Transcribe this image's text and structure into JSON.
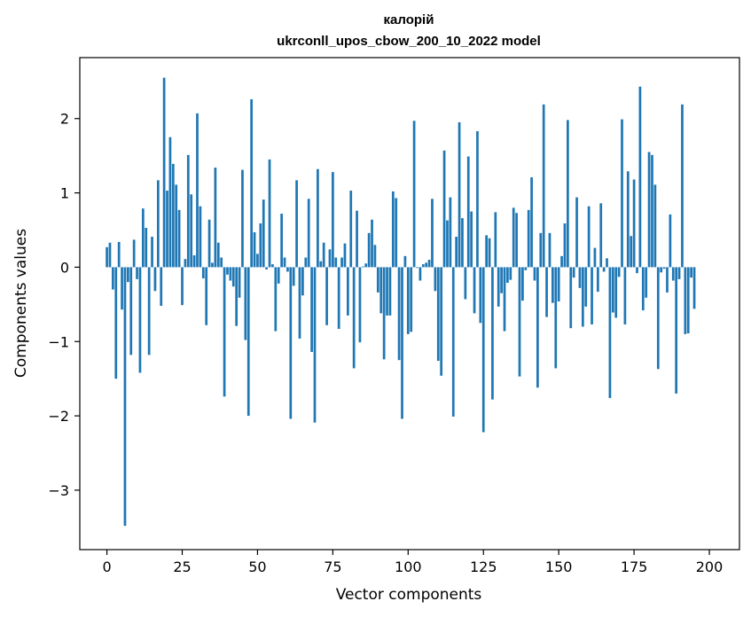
{
  "chart_data": {
    "type": "bar",
    "title_line1": "калорій",
    "title_line2": "ukrconll_upos_cbow_200_10_2022 model",
    "xlabel": "Vector components",
    "ylabel": "Components values",
    "xlim": [
      -9,
      210
    ],
    "ylim": [
      -3.8,
      2.82
    ],
    "xticks": [
      0,
      25,
      50,
      75,
      100,
      125,
      150,
      175,
      200
    ],
    "xtick_labels": [
      "0",
      "25",
      "50",
      "75",
      "100",
      "125",
      "150",
      "175",
      "200"
    ],
    "yticks": [
      -3,
      -2,
      -1,
      0,
      1,
      2
    ],
    "ytick_labels": [
      "−3",
      "−2",
      "−1",
      "0",
      "1",
      "2"
    ],
    "bar_color": "#1f77b4",
    "grid": false,
    "values": [
      0.27,
      0.33,
      -0.3,
      -1.5,
      0.34,
      -0.57,
      -3.48,
      -0.2,
      -1.18,
      0.37,
      -0.16,
      -1.42,
      0.79,
      0.53,
      -1.18,
      0.41,
      -0.32,
      1.17,
      -0.52,
      2.55,
      1.03,
      1.75,
      1.39,
      1.11,
      0.77,
      -0.51,
      0.11,
      1.51,
      0.98,
      0.16,
      2.07,
      0.82,
      -0.15,
      -0.78,
      0.64,
      0.06,
      1.34,
      0.33,
      0.13,
      -1.74,
      -0.1,
      -0.18,
      -0.26,
      -0.79,
      -0.41,
      1.31,
      -0.98,
      -2.0,
      2.26,
      0.47,
      0.18,
      0.59,
      0.91,
      -0.03,
      1.45,
      0.04,
      -0.86,
      -0.22,
      0.72,
      0.13,
      -0.06,
      -2.04,
      -0.25,
      1.17,
      -0.96,
      -0.38,
      0.13,
      0.92,
      -1.14,
      -2.09,
      1.32,
      0.08,
      0.33,
      -0.78,
      0.24,
      1.28,
      0.13,
      -0.83,
      0.13,
      0.32,
      -0.65,
      1.03,
      -1.36,
      0.76,
      -1.01,
      0.01,
      0.05,
      0.46,
      0.64,
      0.3,
      -0.34,
      -0.62,
      -1.24,
      -0.65,
      -0.65,
      1.02,
      0.93,
      -1.25,
      -2.04,
      0.15,
      -0.9,
      -0.87,
      1.97,
      -0.01,
      -0.18,
      0.04,
      0.06,
      0.1,
      0.92,
      -0.32,
      -1.26,
      -1.46,
      1.57,
      0.63,
      0.94,
      -2.01,
      0.41,
      1.95,
      0.66,
      -0.43,
      1.49,
      0.75,
      -0.62,
      1.83,
      -0.75,
      -2.22,
      0.43,
      0.39,
      -1.78,
      0.74,
      -0.53,
      -0.35,
      -0.86,
      -0.21,
      -0.17,
      0.8,
      0.73,
      -1.47,
      -0.45,
      -0.04,
      0.77,
      1.21,
      -0.18,
      -1.62,
      0.46,
      2.19,
      -0.67,
      0.46,
      -0.48,
      -1.36,
      -0.46,
      0.15,
      0.59,
      1.98,
      -0.82,
      -0.14,
      0.94,
      -0.28,
      -0.8,
      -0.53,
      0.82,
      -0.77,
      0.26,
      -0.33,
      0.86,
      -0.06,
      0.12,
      -1.76,
      -0.61,
      -0.68,
      -0.13,
      1.99,
      -0.77,
      1.29,
      0.42,
      1.18,
      -0.08,
      2.43,
      -0.58,
      -0.41,
      1.55,
      1.51,
      1.11,
      -1.37,
      -0.07,
      -0.02,
      -0.34,
      0.71,
      -0.18,
      -1.7,
      -0.16,
      2.19,
      -0.9,
      -0.89,
      -0.14,
      -0.56
    ]
  }
}
